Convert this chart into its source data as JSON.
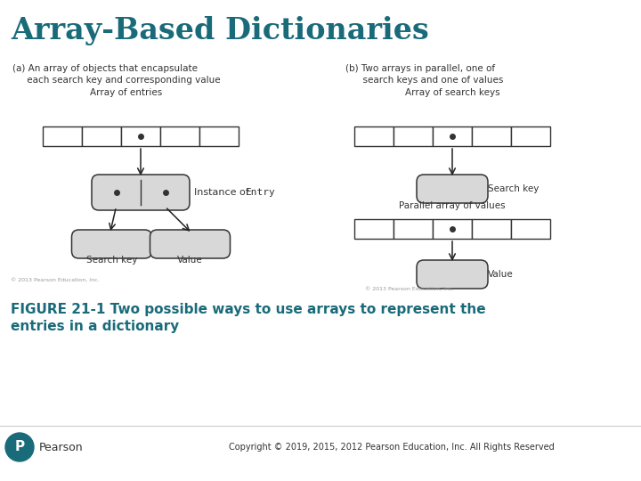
{
  "title": "Array-Based Dictionaries",
  "title_color": "#1a6b7a",
  "bg_color": "#ffffff",
  "figure_caption": "FIGURE 21-1 Two possible ways to use arrays to represent the\nentries in a dictionary",
  "copyright": "Copyright © 2019, 2015, 2012 Pearson Education, Inc. All Rights Reserved",
  "text_color": "#1a6b7a",
  "diagram_color": "#333333",
  "box_fill": "#d8d8d8",
  "array_fill": "#ffffff",
  "arrow_color": "#222222",
  "small_copyright": "© 2013 Pearson Education, Inc."
}
